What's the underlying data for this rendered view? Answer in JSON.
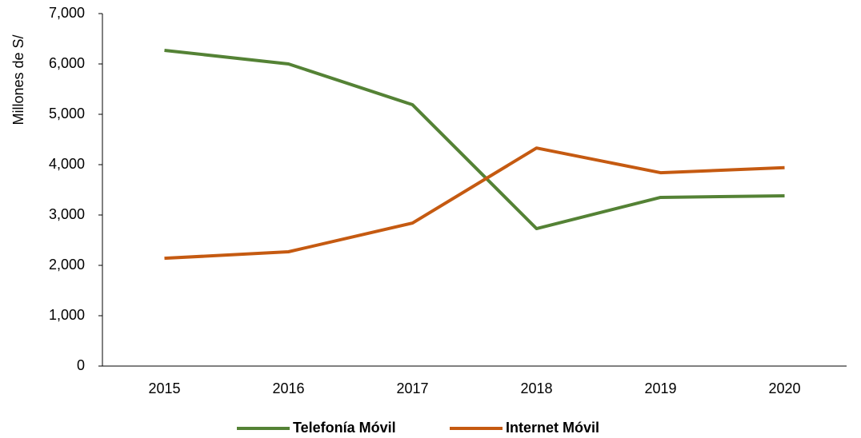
{
  "chart_data": {
    "type": "line",
    "y_label": "Millones de S/",
    "categories": [
      "2015",
      "2016",
      "2017",
      "2018",
      "2019",
      "2020"
    ],
    "series": [
      {
        "name": "Telefonía Móvil",
        "color": "#548235",
        "values": [
          6270,
          6000,
          5190,
          2730,
          3350,
          3380
        ]
      },
      {
        "name": "Internet Móvil",
        "color": "#c55a11",
        "values": [
          2140,
          2270,
          2840,
          4330,
          3840,
          3940
        ]
      }
    ],
    "ylim": [
      0,
      7000
    ],
    "yticks": [
      0,
      {
        "value": 1000,
        "label": "1,000"
      },
      {
        "value": 2000,
        "label": "2,000"
      },
      {
        "value": 3000,
        "label": "3,000"
      },
      {
        "value": 4000,
        "label": "4,000"
      },
      {
        "value": 5000,
        "label": "5,000"
      },
      {
        "value": 6000,
        "label": "6,000"
      },
      {
        "value": 7000,
        "label": "7,000"
      }
    ],
    "grid": false,
    "legend": "bottom"
  }
}
